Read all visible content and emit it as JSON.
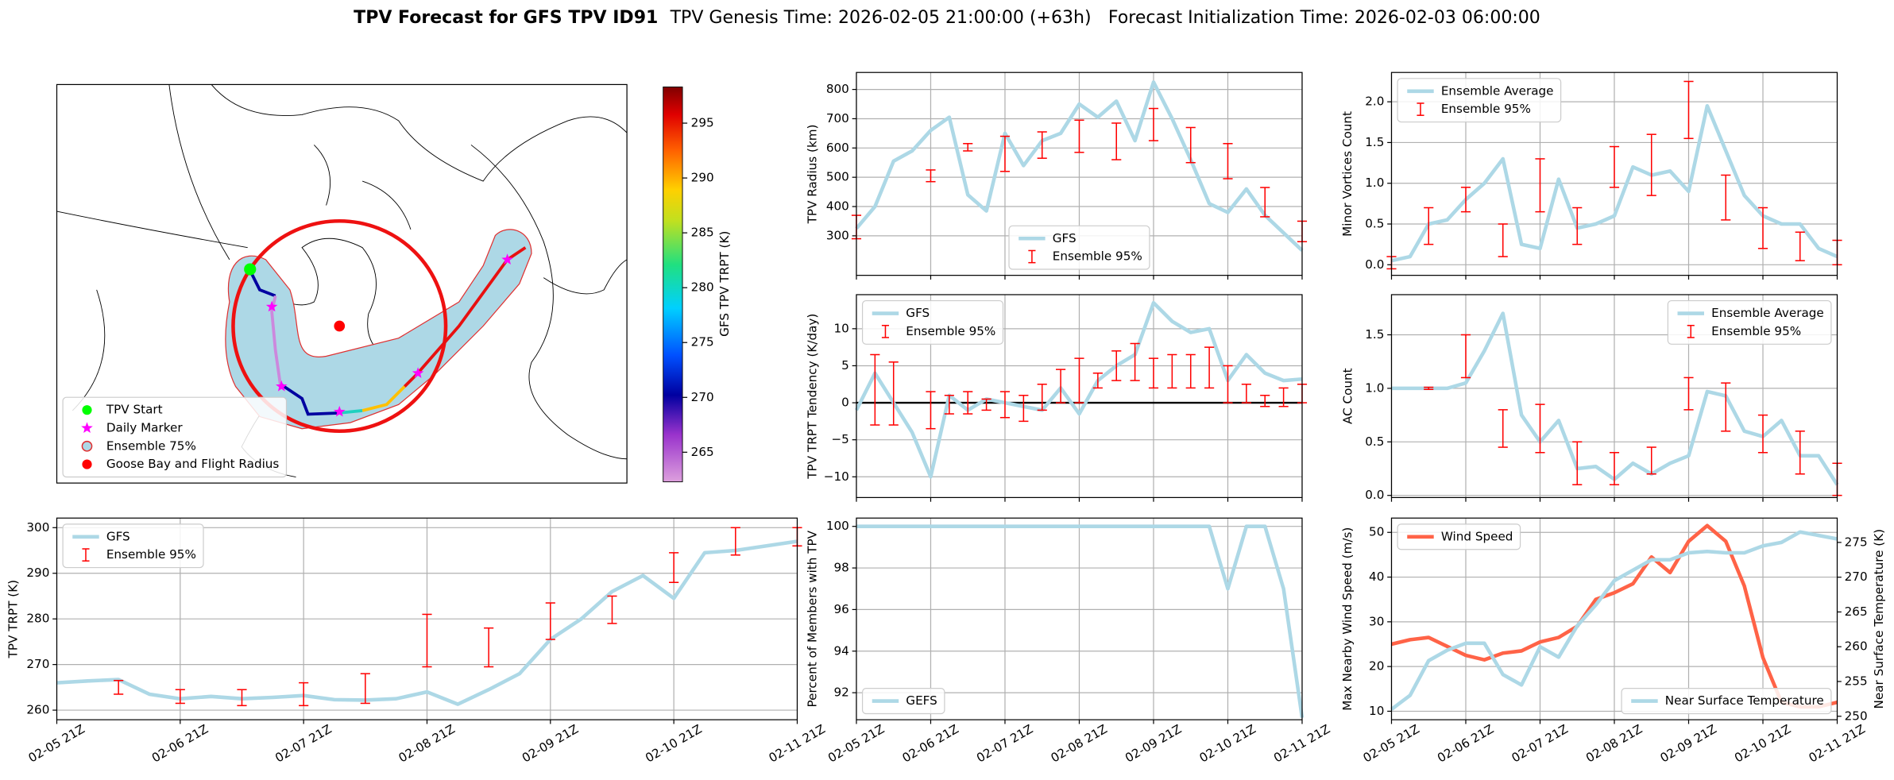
{
  "header": {
    "title": "TPV Forecast for GFS TPV ID91",
    "genesis": "TPV Genesis Time: 2026-02-05 21:00:00 (+63h)",
    "init": "Forecast Initialization Time: 2026-02-03 06:00:00"
  },
  "chart_data": [
    {
      "type": "map",
      "legend": "lower left",
      "entries": [
        {
          "name": "TPV Start",
          "marker": "circle",
          "color": "#00ff00"
        },
        {
          "name": "Daily Marker",
          "marker": "star",
          "color": "#ff00ff"
        },
        {
          "name": "Ensemble 75%",
          "marker": "circle",
          "color": "#add8e6",
          "edgecolor": "#e03030"
        },
        {
          "name": "Goose Bay and Flight Radius",
          "marker": "circle",
          "color": "#ff0000"
        }
      ],
      "colorbar": {
        "label": "GFS TPV TRPT (K)",
        "lim": [
          262.3,
          298.3
        ],
        "ticks": [
          265,
          270,
          275,
          280,
          285,
          290,
          295
        ]
      }
    },
    {
      "type": "line",
      "ylabel": "TPV Radius (km)",
      "ylim": [
        165,
        858
      ],
      "yticks": [
        300,
        400,
        500,
        600,
        700,
        800
      ],
      "grid": true,
      "legend": "lower center",
      "series": [
        {
          "name": "GFS",
          "color": "#add8e6",
          "values": [
            325,
            400,
            555,
            590,
            660,
            705,
            440,
            385,
            650,
            540,
            625,
            650,
            750,
            705,
            760,
            625,
            825,
            700,
            560,
            410,
            380,
            460,
            370,
            310,
            250
          ]
        }
      ],
      "ensemble": {
        "name": "Ensemble 95%",
        "color": "#ff0000",
        "low": [
          290,
          null,
          null,
          null,
          485,
          null,
          590,
          null,
          520,
          null,
          565,
          null,
          585,
          null,
          560,
          null,
          625,
          null,
          550,
          null,
          495,
          null,
          365,
          null,
          280
        ],
        "high": [
          370,
          null,
          null,
          null,
          525,
          null,
          615,
          null,
          640,
          null,
          655,
          null,
          695,
          null,
          685,
          null,
          735,
          null,
          670,
          null,
          615,
          null,
          465,
          null,
          350
        ]
      }
    },
    {
      "type": "line",
      "ylabel": "TPV TRPT Tendency (K/day)",
      "ylim": [
        -12.8,
        14.6
      ],
      "yticks": [
        {
          "value": -10,
          "label": "−10"
        },
        {
          "value": -5,
          "label": "−5"
        },
        0,
        5,
        10
      ],
      "grid": true,
      "legend": "upper left",
      "hline": 0,
      "series": [
        {
          "name": "GFS",
          "color": "#add8e6",
          "values": [
            -1,
            4,
            0,
            -4,
            -10,
            1,
            -1,
            0.5,
            0,
            -0.5,
            -1,
            2,
            -1.5,
            3,
            5,
            6.5,
            13.5,
            11,
            9.5,
            10,
            3,
            6.5,
            4,
            3,
            3.2
          ]
        }
      ],
      "ensemble": {
        "name": "Ensemble 95%",
        "color": "#ff0000",
        "low": [
          null,
          -3,
          -3,
          null,
          -3.5,
          -1.5,
          -1.5,
          -1,
          -2,
          -2.5,
          -1,
          0,
          0,
          2,
          3,
          3,
          2,
          2,
          2,
          2,
          0,
          0,
          -0.5,
          -0.5,
          0
        ],
        "high": [
          null,
          6.5,
          5.5,
          null,
          1.5,
          1,
          1.5,
          0.5,
          1.5,
          1,
          2.5,
          4.5,
          6,
          4,
          7,
          8,
          6,
          6.5,
          6.5,
          7.5,
          5,
          2.5,
          1,
          2,
          2.5
        ]
      }
    },
    {
      "type": "line",
      "ylabel": "Percent of Members with TPV",
      "ylim": [
        90.7,
        100.4
      ],
      "yticks": [
        92,
        94,
        96,
        98,
        100
      ],
      "grid": true,
      "legend": "lower left",
      "categories": [
        "02-05 21Z",
        null,
        null,
        null,
        "02-06 21Z",
        null,
        null,
        null,
        "02-07 21Z",
        null,
        null,
        null,
        "02-08 21Z",
        null,
        null,
        null,
        "02-09 21Z",
        null,
        null,
        null,
        "02-10 21Z",
        null,
        null,
        null,
        "02-11 21Z"
      ],
      "series": [
        {
          "name": "GEFS",
          "color": "#add8e6",
          "values": [
            100,
            100,
            100,
            100,
            100,
            100,
            100,
            100,
            100,
            100,
            100,
            100,
            100,
            100,
            100,
            100,
            100,
            100,
            100,
            100,
            97,
            100,
            100,
            97,
            90.8
          ]
        }
      ]
    },
    {
      "type": "line",
      "ylabel": "Minor Vortices Count",
      "ylim": [
        -0.13,
        2.36
      ],
      "yticks": [
        {
          "value": 0,
          "label": "0.0"
        },
        0.5,
        {
          "value": 1,
          "label": "1.0"
        },
        1.5,
        {
          "value": 2,
          "label": "2.0"
        }
      ],
      "grid": true,
      "legend": "upper left",
      "series": [
        {
          "name": "Ensemble Average",
          "color": "#add8e6",
          "values": [
            0.05,
            0.1,
            0.5,
            0.55,
            0.8,
            1.0,
            1.3,
            0.25,
            0.2,
            1.05,
            0.45,
            0.5,
            0.6,
            1.2,
            1.1,
            1.15,
            0.9,
            1.95,
            1.4,
            0.85,
            0.6,
            0.5,
            0.5,
            0.2,
            0.1
          ]
        }
      ],
      "ensemble": {
        "name": "Ensemble 95%",
        "color": "#ff0000",
        "low": [
          -0.05,
          null,
          0.25,
          null,
          0.65,
          null,
          0.1,
          null,
          0.65,
          null,
          0.25,
          null,
          0.95,
          null,
          0.85,
          null,
          1.55,
          null,
          0.55,
          null,
          0.2,
          null,
          0.05,
          null,
          0
        ],
        "high": [
          0.1,
          null,
          0.7,
          null,
          0.95,
          null,
          0.5,
          null,
          1.3,
          null,
          0.7,
          null,
          1.45,
          null,
          1.6,
          null,
          2.25,
          null,
          1.1,
          null,
          0.7,
          null,
          0.4,
          null,
          0.3
        ]
      }
    },
    {
      "type": "line",
      "ylabel": "AC Count",
      "ylim": [
        -0.02,
        1.875
      ],
      "yticks": [
        {
          "value": 0,
          "label": "0.0"
        },
        0.5,
        {
          "value": 1,
          "label": "1.0"
        },
        1.5
      ],
      "grid": true,
      "legend": "upper right",
      "series": [
        {
          "name": "Ensemble Average",
          "color": "#add8e6",
          "values": [
            1,
            1,
            1,
            1,
            1.05,
            1.35,
            1.7,
            0.75,
            0.5,
            0.7,
            0.25,
            0.27,
            0.15,
            0.3,
            0.2,
            0.3,
            0.37,
            0.97,
            0.93,
            0.6,
            0.55,
            0.7,
            0.37,
            0.37,
            0.1
          ]
        }
      ],
      "ensemble": {
        "name": "Ensemble 95%",
        "color": "#ff0000",
        "low": [
          null,
          null,
          0.99,
          null,
          1.1,
          null,
          0.45,
          null,
          0.4,
          null,
          0.1,
          null,
          0.1,
          null,
          0.2,
          null,
          0.8,
          null,
          0.6,
          null,
          0.4,
          null,
          0.2,
          null,
          0
        ],
        "high": [
          null,
          null,
          1.01,
          null,
          1.5,
          null,
          0.8,
          null,
          0.85,
          null,
          0.5,
          null,
          0.4,
          null,
          0.45,
          null,
          1.1,
          null,
          1.05,
          null,
          0.75,
          null,
          0.6,
          null,
          0.3
        ]
      }
    },
    {
      "type": "line",
      "ylabel": "Max Nearby Wind Speed (m/s)",
      "y2label": "Near Surface Temperature (K)",
      "ylim": [
        8.1,
        53.2
      ],
      "yticks": [
        10,
        20,
        30,
        40,
        50
      ],
      "y2lim": [
        249.5,
        278.5
      ],
      "y2ticks": [
        250,
        255,
        260,
        265,
        270,
        275
      ],
      "grid": true,
      "categories": [
        "02-05 21Z",
        null,
        null,
        null,
        "02-06 21Z",
        null,
        null,
        null,
        "02-07 21Z",
        null,
        null,
        null,
        "02-08 21Z",
        null,
        null,
        null,
        "02-09 21Z",
        null,
        null,
        null,
        "02-10 21Z",
        null,
        null,
        null,
        "02-11 21Z"
      ],
      "series": [
        {
          "name": "Wind Speed",
          "color": "#ff6347",
          "legend": "upper left",
          "values": [
            25,
            26,
            26.5,
            24.5,
            22.5,
            21.5,
            23,
            23.5,
            25.5,
            26.5,
            29,
            35,
            36.5,
            38.5,
            44.5,
            41,
            48,
            51.5,
            48,
            38,
            22,
            12,
            11,
            11,
            12
          ]
        },
        {
          "name": "Near Surface Temperature",
          "color": "#add8e6",
          "axis": "y2",
          "label_color": "#4169e1",
          "legend": "lower right",
          "values": [
            251,
            253,
            258,
            259.5,
            260.5,
            260.5,
            256,
            254.5,
            260,
            258.5,
            263,
            266,
            269.5,
            271,
            272.5,
            272.5,
            273.5,
            273.7,
            273.5,
            273.5,
            274.5,
            275,
            276.5,
            276,
            275.5
          ]
        }
      ]
    },
    {
      "type": "line",
      "ylabel": "TPV TRPT (K)",
      "ylim": [
        257.9,
        302.1
      ],
      "yticks": [
        260,
        270,
        280,
        290,
        300
      ],
      "grid": true,
      "legend": "upper left",
      "categories": [
        "02-05 21Z",
        null,
        null,
        null,
        "02-06 21Z",
        null,
        null,
        null,
        "02-07 21Z",
        null,
        null,
        null,
        "02-08 21Z",
        null,
        null,
        null,
        "02-09 21Z",
        null,
        null,
        null,
        "02-10 21Z",
        null,
        null,
        null,
        "02-11 21Z"
      ],
      "series": [
        {
          "name": "GFS",
          "color": "#add8e6",
          "values": [
            266,
            266.4,
            266.7,
            263.5,
            262.5,
            263,
            262.5,
            262.8,
            263.2,
            262.3,
            262.2,
            262.5,
            264,
            261.3,
            264.5,
            268,
            275.5,
            280,
            286,
            289.5,
            284.5,
            294.5,
            295,
            296,
            297
          ]
        }
      ],
      "ensemble": {
        "name": "Ensemble 95%",
        "color": "#ff0000",
        "low": [
          null,
          null,
          263.5,
          null,
          261.5,
          null,
          261,
          null,
          261,
          null,
          261.5,
          null,
          269.5,
          null,
          269.5,
          null,
          275.5,
          null,
          279,
          null,
          288,
          null,
          294,
          null,
          296
        ],
        "high": [
          null,
          null,
          266.5,
          null,
          264.5,
          null,
          264.5,
          null,
          266,
          null,
          268,
          null,
          281,
          null,
          278,
          null,
          283.5,
          null,
          285,
          null,
          294.5,
          null,
          300,
          null,
          300
        ]
      }
    }
  ]
}
